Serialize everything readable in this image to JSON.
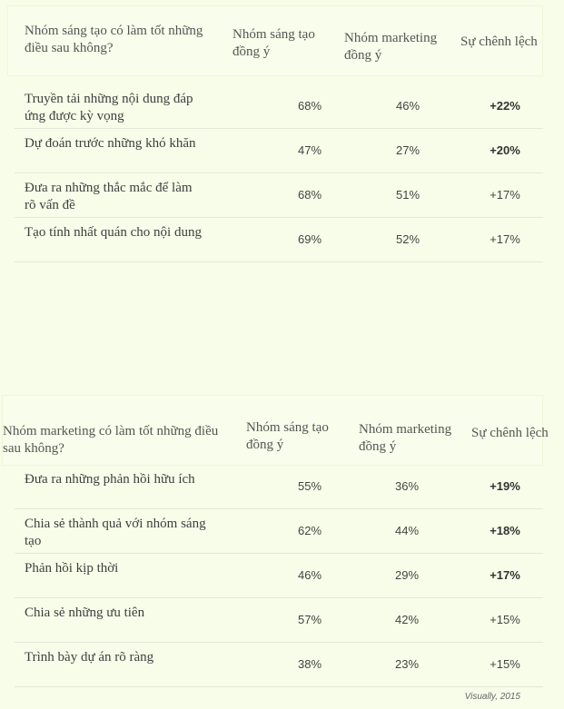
{
  "chart_data": [
    {
      "type": "table",
      "columns": [
        "Nhóm sáng tạo có làm tốt những điều sau không?",
        "Nhóm sáng tạo đồng ý",
        "Nhóm marketing đồng ý",
        "Sự chênh lệch"
      ],
      "rows": [
        {
          "label": "Truyền tải những nội dung đáp ứng được kỳ vọng",
          "creative": "68%",
          "marketing": "46%",
          "diff": "+22%",
          "bold": true
        },
        {
          "label": "Dự đoán trước những khó khăn",
          "creative": "47%",
          "marketing": "27%",
          "diff": "+20%",
          "bold": true
        },
        {
          "label": "Đưa ra những thắc mắc để làm rõ vấn đề",
          "creative": "68%",
          "marketing": "51%",
          "diff": "+17%",
          "bold": false
        },
        {
          "label": "Tạo tính nhất quán cho nội dung",
          "creative": "69%",
          "marketing": "52%",
          "diff": "+17%",
          "bold": false
        }
      ]
    },
    {
      "type": "table",
      "columns": [
        "Nhóm marketing có làm tốt những điều sau không?",
        "Nhóm sáng tạo đồng ý",
        "Nhóm marketing đồng ý",
        "Sự chênh lệch"
      ],
      "rows": [
        {
          "label": "Đưa ra những phản hồi hữu ích",
          "creative": "55%",
          "marketing": "36%",
          "diff": "+19%",
          "bold": true
        },
        {
          "label": "Chia sẻ thành quả với nhóm sáng tạo",
          "creative": "62%",
          "marketing": "44%",
          "diff": "+18%",
          "bold": true
        },
        {
          "label": "Phản hồi kịp thời",
          "creative": "46%",
          "marketing": "29%",
          "diff": "+17%",
          "bold": true
        },
        {
          "label": "Chia sẻ những ưu tiên",
          "creative": "57%",
          "marketing": "42%",
          "diff": "+15%",
          "bold": false
        },
        {
          "label": "Trình bày dự án rõ ràng",
          "creative": "38%",
          "marketing": "23%",
          "diff": "+15%",
          "bold": false
        }
      ]
    }
  ],
  "source": "Visually, 2015"
}
